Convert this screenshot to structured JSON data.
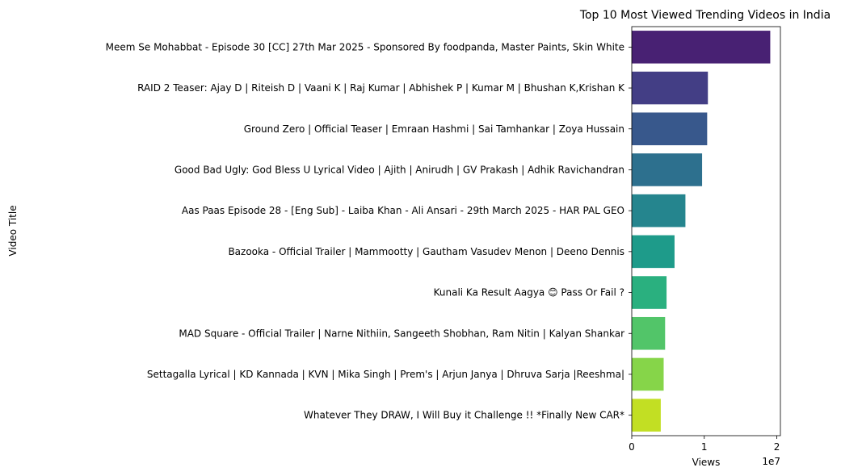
{
  "chart_data": {
    "type": "bar",
    "orientation": "horizontal",
    "title": "Top 10 Most Viewed Trending Videos in India",
    "xlabel": "Views",
    "ylabel": "Video Title",
    "x_offset_label": "1e7",
    "x_scale": 10000000,
    "xlim": [
      0,
      20500000
    ],
    "xticks": [
      0,
      10000000,
      20000000
    ],
    "xtick_labels": [
      "0",
      "1",
      "2"
    ],
    "grid": false,
    "legend": "none",
    "categories": [
      "Meem Se Mohabbat - Episode 30 [CC] 27th Mar 2025 - Sponsored By foodpanda, Master Paints, Skin White",
      "RAID 2 Teaser: Ajay D | Riteish D | Vaani K | Raj Kumar | Abhishek P | Kumar M | Bhushan K,Krishan K",
      "Ground Zero | Official Teaser | Emraan Hashmi | Sai Tamhankar | Zoya Hussain",
      "Good Bad Ugly: God Bless U Lyrical Video | Ajith | Anirudh | GV Prakash | Adhik Ravichandran",
      "Aas Paas Episode 28 - [Eng Sub] - Laiba Khan - Ali Ansari - 29th March 2025 - HAR PAL GEO",
      "Bazooka - Official Trailer | Mammootty | Gautham Vasudev Menon | Deeno Dennis",
      "Kunali Ka Result Aagya 😊 Pass Or Fail ?",
      "MAD Square - Official Trailer | Narne Nithiin, Sangeeth Shobhan, Ram Nitin | Kalyan Shankar",
      "Settagalla Lyrical | KD Kannada | KVN | Mika Singh | Prem's | Arjun Janya | Dhruva Sarja |Reeshma|",
      "Whatever They DRAW, I Will Buy it Challenge !! *Finally New CAR*"
    ],
    "values": [
      19100000,
      10500000,
      10400000,
      9700000,
      7400000,
      5900000,
      4800000,
      4600000,
      4400000,
      4000000
    ],
    "colors": [
      "#482173",
      "#433e85",
      "#38588c",
      "#2d708e",
      "#25858e",
      "#1e9b8a",
      "#2ab07f",
      "#52c569",
      "#86d549",
      "#c2df23"
    ]
  }
}
